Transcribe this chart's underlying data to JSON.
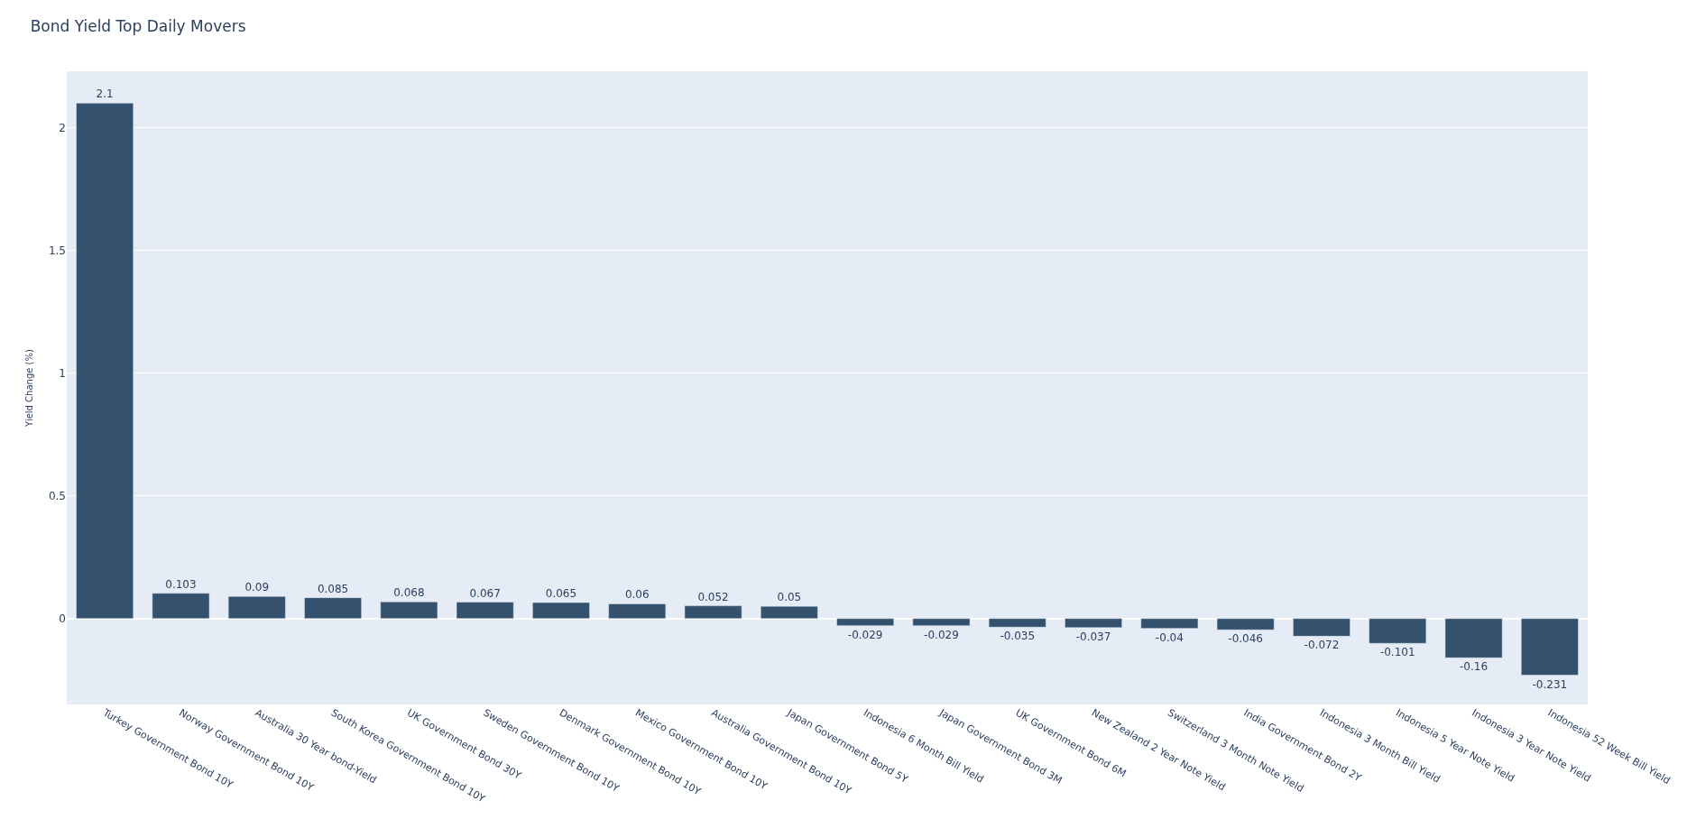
{
  "chart_data": {
    "type": "bar",
    "title": "Bond Yield Top Daily Movers",
    "ylabel": "Yield Change (%)",
    "categories": [
      "Turkey Government Bond 10Y",
      "Norway Government Bond 10Y",
      "Australia 30 Year bond-Yield",
      "South Korea Government Bond 10Y",
      "UK Government Bond 30Y",
      "Sweden Government Bond 10Y",
      "Denmark Government Bond 10Y",
      "Mexico Government Bond 10Y",
      "Australia Government Bond 10Y",
      "Japan Government Bond 5Y",
      "Indonesia 6 Month Bill Yield",
      "Japan Government Bond 3M",
      "UK Government Bond 6M",
      "New Zealand 2 Year Note Yield",
      "Switzerland 3 Month Note Yield",
      "India Government Bond 2Y",
      "Indonesia 3 Month Bill Yield",
      "Indonesia 5 Year Note Yield",
      "Indonesia 3 Year Note Yield",
      "Indonesia 52 Week Bill Yield"
    ],
    "values": [
      2.1,
      0.103,
      0.09,
      0.085,
      0.068,
      0.067,
      0.065,
      0.06,
      0.052,
      0.05,
      -0.029,
      -0.029,
      -0.035,
      -0.037,
      -0.04,
      -0.046,
      -0.072,
      -0.101,
      -0.16,
      -0.231
    ],
    "color": "#34516e",
    "data_labels": true,
    "ylim": [
      -0.35,
      2.23
    ],
    "yticks": [
      0,
      0.5,
      1,
      1.5,
      2
    ],
    "grid": "y"
  }
}
